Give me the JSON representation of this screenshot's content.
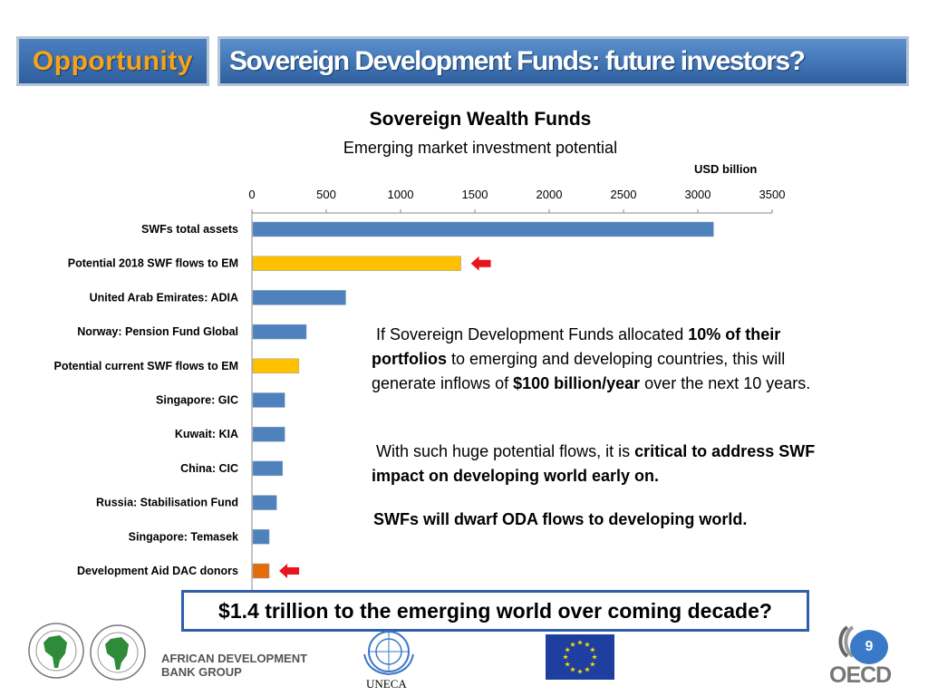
{
  "header": {
    "tag": "Opportunity",
    "title": "Sovereign Development Funds: future investors?"
  },
  "chart_data": {
    "type": "bar",
    "orientation": "horizontal",
    "title": "Sovereign Wealth Funds",
    "subtitle": "Emerging market investment potential",
    "unit_label": "USD billion",
    "xlim": [
      0,
      3500
    ],
    "ticks": [
      "0",
      "500",
      "1000",
      "1500",
      "2000",
      "2500",
      "3000",
      "3500"
    ],
    "tick_values": [
      0,
      500,
      1000,
      1500,
      2000,
      2500,
      3000,
      3500
    ],
    "axis_position": "top",
    "grid": false,
    "categories": [
      "SWFs total assets",
      "Potential 2018 SWF flows to EM",
      "United Arab Emirates: ADIA",
      "Norway: Pension Fund Global",
      "Potential current SWF flows to EM",
      "Singapore: GIC",
      "Kuwait: KIA",
      "China: CIC",
      "Russia: Stabilisation Fund",
      "Singapore: Temasek",
      "Development Aid DAC donors"
    ],
    "values": [
      3100,
      1400,
      625,
      360,
      310,
      215,
      215,
      200,
      160,
      110,
      110
    ],
    "bar_colors": [
      "#4f81bd",
      "#ffc000",
      "#4f81bd",
      "#4f81bd",
      "#ffc000",
      "#4f81bd",
      "#4f81bd",
      "#4f81bd",
      "#4f81bd",
      "#4f81bd",
      "#e46c0a"
    ],
    "highlighted": [
      "Potential 2018 SWF flows to EM",
      "Development Aid DAC donors"
    ],
    "highlight_arrow_color": "#e8141e"
  },
  "callouts": {
    "p1_a": "If Sovereign Development Funds allocated ",
    "p1_b": "10% of their portfolios",
    "p1_c": " to emerging and developing countries, this will generate inflows of ",
    "p1_d": "$100 billion/year",
    "p1_e": " over the next 10 years.",
    "p2_a": "With such huge potential flows, it is ",
    "p2_b": "critical to address SWF impact on developing world early on.",
    "p3": "SWFs will dwarf ODA flows to developing world."
  },
  "bottom_banner": "$1.4 trillion to the emerging world over coming decade?",
  "footer": {
    "afdb_name_line1": "AFRICAN DEVELOPMENT",
    "afdb_name_line2": "BANK GROUP",
    "uneca": "UNECA",
    "oecd": "OECD",
    "page_number": "9"
  },
  "colors": {
    "header_blue": "#2f5f9e",
    "tag_orange": "#f7a21a",
    "banner_border": "#2f5fa8",
    "eu_blue": "#1f3fa0",
    "eu_star": "#ffd700"
  }
}
